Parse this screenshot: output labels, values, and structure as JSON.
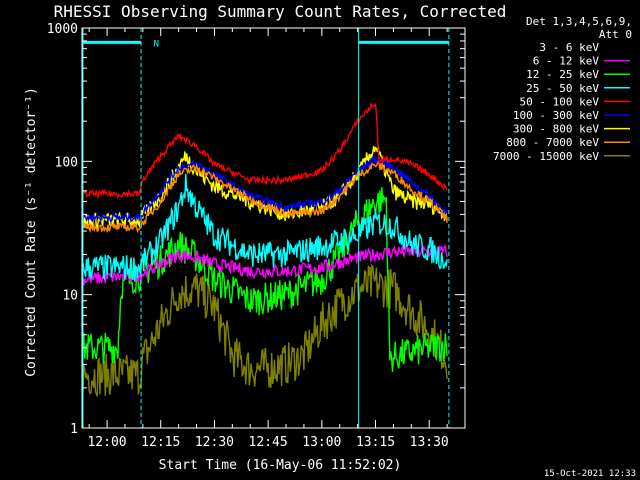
{
  "chart_data": {
    "type": "line",
    "title": "RHESSI Observing Summary Count Rates, Corrected",
    "xlabel": "Start Time (16-May-06 11:52:02)",
    "ylabel": "Corrected Count Rate (s⁻¹ detector⁻¹)",
    "y_scale": "log",
    "ylim": [
      1,
      1000
    ],
    "xlim_minutes": [
      -7.0,
      100.0
    ],
    "x_ticks": [
      "12:00",
      "12:15",
      "12:30",
      "12:45",
      "13:00",
      "13:15",
      "13:30"
    ],
    "x_tick_minutes": [
      0,
      15,
      30,
      45,
      60,
      75,
      90
    ],
    "y_ticks": [
      {
        "value": 1,
        "label": "1"
      },
      {
        "value": 10,
        "label": "10"
      },
      {
        "value": 100,
        "label": "100"
      },
      {
        "value": 1000,
        "label": "1000"
      }
    ],
    "legend": {
      "header1": "Det 1,3,4,5,6,9,",
      "header2": "Att 0",
      "placement": "right"
    },
    "annotation": {
      "text": "N",
      "x_minute": 13
    },
    "vlines_cyan": [
      -7.0,
      70.0
    ],
    "vlines_dashed": [
      9.5,
      95.5
    ],
    "night_bars": [
      {
        "from": -7.0,
        "to": 9.5,
        "value": 780
      },
      {
        "from": 70.0,
        "to": 95.5,
        "value": 780
      }
    ],
    "series": [
      {
        "name": "3 - 6 keV",
        "color": "#000000",
        "x": [
          -7,
          9,
          10,
          15,
          20,
          25,
          30,
          40,
          50,
          60,
          65,
          70,
          75,
          80,
          85,
          90,
          95
        ],
        "y": [
          57,
          57,
          70,
          100,
          150,
          130,
          95,
          72,
          70,
          78,
          110,
          180,
          260,
          110,
          95,
          80,
          60
        ]
      },
      {
        "name": "6 - 12 keV",
        "color": "#ff00ff",
        "x": [
          -7,
          9,
          15,
          20,
          25,
          30,
          40,
          50,
          60,
          70,
          75,
          80,
          90,
          95
        ],
        "y": [
          13,
          14,
          17,
          20,
          19,
          17,
          15,
          15,
          16,
          19,
          20,
          21,
          21,
          21
        ]
      },
      {
        "name": "12 - 25 keV",
        "color": "#00ff00",
        "x": [
          -7,
          3,
          4,
          9,
          15,
          20,
          25,
          30,
          40,
          50,
          60,
          65,
          70,
          75,
          78,
          79,
          80,
          85,
          90,
          95
        ],
        "y": [
          4,
          4,
          12,
          14,
          18,
          24,
          19,
          13,
          9,
          10,
          13,
          20,
          35,
          50,
          52,
          3.3,
          3.4,
          3.7,
          4,
          4.2
        ]
      },
      {
        "name": "25 - 50 keV",
        "color": "#00ffff",
        "x": [
          -7,
          9,
          15,
          20,
          22,
          25,
          30,
          40,
          50,
          60,
          70,
          75,
          80,
          85,
          90,
          95
        ],
        "y": [
          16,
          16,
          25,
          45,
          65,
          45,
          28,
          20,
          20,
          23,
          28,
          35,
          33,
          24,
          22,
          18
        ]
      },
      {
        "name": "50 - 100 keV",
        "color": "#ff0000",
        "x": [
          -7,
          9,
          10,
          15,
          20,
          25,
          30,
          40,
          50,
          60,
          65,
          70,
          73,
          75,
          76,
          80,
          85,
          90,
          95
        ],
        "y": [
          57,
          57,
          72,
          110,
          155,
          130,
          95,
          72,
          72,
          85,
          120,
          200,
          245,
          275,
          100,
          105,
          95,
          80,
          62
        ]
      },
      {
        "name": "100 - 300 keV",
        "color": "#0000ff",
        "x": [
          -7,
          9,
          15,
          20,
          25,
          30,
          40,
          50,
          60,
          65,
          70,
          75,
          80,
          85,
          90,
          95
        ],
        "y": [
          38,
          38,
          60,
          90,
          95,
          80,
          55,
          45,
          50,
          60,
          85,
          105,
          90,
          70,
          55,
          40
        ]
      },
      {
        "name": "300 - 800 keV",
        "color": "#ffff00",
        "x": [
          -7,
          9,
          15,
          20,
          22,
          25,
          30,
          40,
          50,
          60,
          65,
          70,
          75,
          80,
          85,
          90,
          95
        ],
        "y": [
          36,
          36,
          55,
          90,
          110,
          85,
          65,
          50,
          40,
          45,
          55,
          80,
          130,
          60,
          50,
          48,
          40
        ]
      },
      {
        "name": "800 - 7000 keV",
        "color": "#ff8800",
        "x": [
          -7,
          9,
          15,
          20,
          25,
          30,
          40,
          50,
          60,
          65,
          70,
          75,
          80,
          85,
          90,
          95
        ],
        "y": [
          32,
          32,
          50,
          80,
          90,
          75,
          52,
          40,
          42,
          55,
          78,
          95,
          82,
          62,
          50,
          37
        ]
      },
      {
        "name": "7000 - 15000 keV",
        "color": "#808000",
        "x": [
          -7,
          9,
          10,
          15,
          20,
          25,
          30,
          35,
          40,
          45,
          50,
          55,
          60,
          65,
          70,
          75,
          80,
          85,
          90,
          95
        ],
        "y": [
          2.5,
          2.5,
          3.2,
          6,
          10.5,
          11,
          8,
          3.5,
          2.8,
          2.8,
          3,
          3.5,
          6,
          8.5,
          11,
          12,
          11,
          7.5,
          5.5,
          3.3
        ]
      }
    ]
  },
  "stamp": "15-Oct-2021 12:33"
}
